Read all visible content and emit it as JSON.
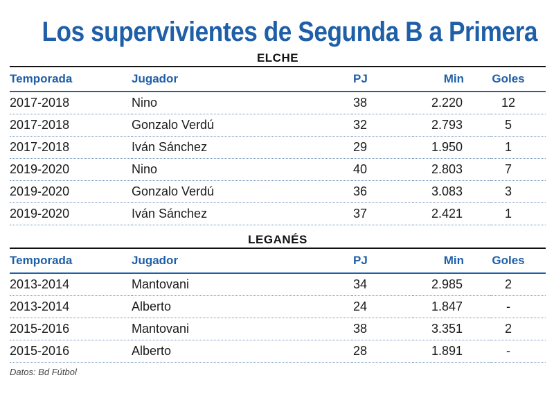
{
  "title": "Los supervivientes de Segunda B a Primera",
  "columns": {
    "temporada": "Temporada",
    "jugador": "Jugador",
    "pj": "PJ",
    "min": "Min",
    "goles": "Goles"
  },
  "sections": [
    {
      "name": "ELCHE",
      "rows": [
        {
          "temporada": "2017-2018",
          "jugador": "Nino",
          "pj": "38",
          "min": "2.220",
          "goles": "12"
        },
        {
          "temporada": "2017-2018",
          "jugador": "Gonzalo Verdú",
          "pj": "32",
          "min": "2.793",
          "goles": "5"
        },
        {
          "temporada": "2017-2018",
          "jugador": "Iván Sánchez",
          "pj": "29",
          "min": "1.950",
          "goles": "1"
        },
        {
          "temporada": "2019-2020",
          "jugador": "Nino",
          "pj": "40",
          "min": "2.803",
          "goles": "7"
        },
        {
          "temporada": "2019-2020",
          "jugador": "Gonzalo Verdú",
          "pj": "36",
          "min": "3.083",
          "goles": "3"
        },
        {
          "temporada": "2019-2020",
          "jugador": "Iván Sánchez",
          "pj": "37",
          "min": "2.421",
          "goles": "1"
        }
      ]
    },
    {
      "name": "LEGANÉS",
      "rows": [
        {
          "temporada": "2013-2014",
          "jugador": "Mantovani",
          "pj": "34",
          "min": "2.985",
          "goles": "2"
        },
        {
          "temporada": "2013-2014",
          "jugador": "Alberto",
          "pj": "24",
          "min": "1.847",
          "goles": "-"
        },
        {
          "temporada": "2015-2016",
          "jugador": "Mantovani",
          "pj": "38",
          "min": "3.351",
          "goles": "2"
        },
        {
          "temporada": "2015-2016",
          "jugador": "Alberto",
          "pj": "28",
          "min": "1.891",
          "goles": "-"
        }
      ]
    }
  ],
  "source": "Datos: Bd Fútbol",
  "colors": {
    "accent": "#1f5fa8",
    "text": "#1a1a1a"
  }
}
